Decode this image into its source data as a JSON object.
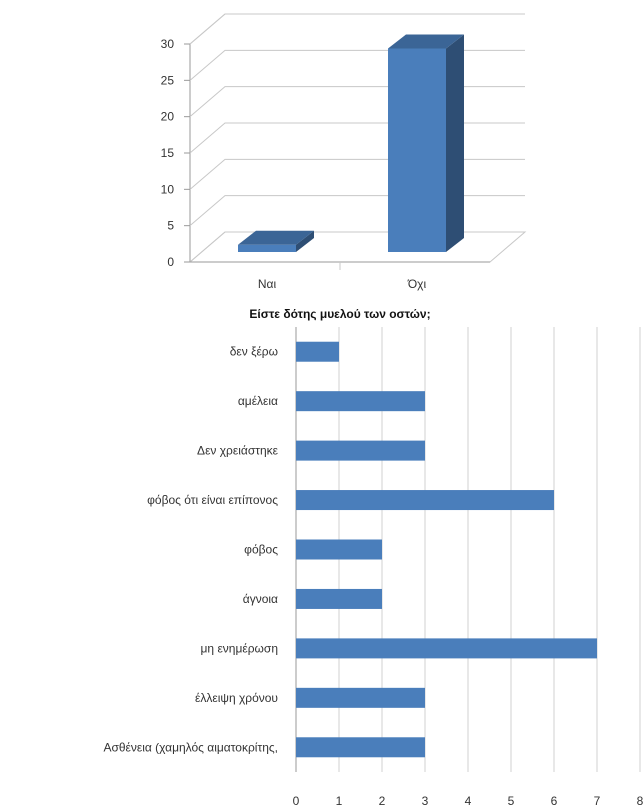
{
  "chart_data": [
    {
      "type": "bar",
      "orientation": "vertical",
      "style": "3d",
      "title": "",
      "xlabel": "Είστε δότης μυελού των οστών;",
      "ylabel": "",
      "categories": [
        "Ναι",
        "Όχι"
      ],
      "values": [
        1,
        28
      ],
      "ylim": [
        0,
        30
      ],
      "yticks": [
        "0",
        "5",
        "10",
        "15",
        "20",
        "25",
        "30"
      ],
      "grid": true,
      "color": "#4a7ebb"
    },
    {
      "type": "bar",
      "orientation": "horizontal",
      "title": "",
      "xlabel": "",
      "ylabel": "",
      "categories": [
        "δεν ξέρω",
        "αμέλεια",
        "Δεν χρειάστηκε",
        "φόβος ότι είναι επίπονος",
        "φόβος",
        "άγνοια",
        "μη ενημέρωση",
        "έλλειψη χρόνου",
        "Ασθένεια (χαμηλός αιματοκρίτης,"
      ],
      "values": [
        1,
        3,
        3,
        6,
        2,
        2,
        7,
        3,
        3
      ],
      "xlim": [
        0,
        8
      ],
      "xticks": [
        "0",
        "1",
        "2",
        "3",
        "4",
        "5",
        "6",
        "7",
        "8"
      ],
      "grid": true,
      "color": "#4a7ebb"
    }
  ]
}
